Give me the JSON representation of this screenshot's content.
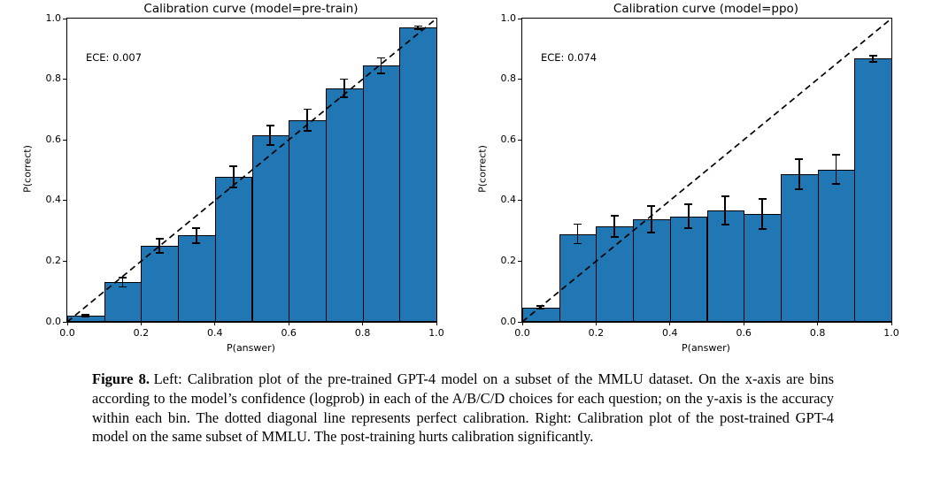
{
  "figure": {
    "caption": {
      "label": "Figure 8.",
      "text": "Left: Calibration plot of the pre-trained GPT-4 model on a subset of the MMLU dataset. On the x-axis are bins according to the model’s confidence (logprob) in each of the A/B/C/D choices for each question; on the y-axis is the accuracy within each bin. The dotted diagonal line represents perfect calibration. Right: Calibration plot of the post-trained GPT-4 model on the same subset of MMLU. The post-training hurts calibration significantly."
    }
  },
  "colors": {
    "bar_fill": "#2077b4",
    "bar_edge": "#000000",
    "diagonal_line": "#000000",
    "text": "#000000",
    "background": "#ffffff"
  },
  "chart_data": [
    {
      "type": "bar",
      "title": "Calibration curve (model=pre-train)",
      "annotation": "ECE: 0.007",
      "xlabel": "P(answer)",
      "ylabel": "P(correct)",
      "xlim": [
        0.0,
        1.0
      ],
      "ylim": [
        0.0,
        1.0
      ],
      "x_ticks": [
        "0.0",
        "0.2",
        "0.4",
        "0.6",
        "0.8",
        "1.0"
      ],
      "y_ticks": [
        "0.0",
        "0.2",
        "0.4",
        "0.6",
        "0.8",
        "1.0"
      ],
      "bin_edges": [
        0.0,
        0.1,
        0.2,
        0.3,
        0.4,
        0.5,
        0.6,
        0.7,
        0.8,
        0.9,
        1.0
      ],
      "bin_centers": [
        0.05,
        0.15,
        0.25,
        0.35,
        0.45,
        0.55,
        0.65,
        0.75,
        0.85,
        0.95
      ],
      "values": [
        0.02,
        0.13,
        0.25,
        0.285,
        0.478,
        0.615,
        0.665,
        0.77,
        0.845,
        0.97
      ],
      "errors": [
        0.004,
        0.015,
        0.023,
        0.025,
        0.035,
        0.033,
        0.036,
        0.03,
        0.025,
        0.005
      ],
      "diagonal_line": {
        "style": "dashed",
        "from": [
          0.0,
          0.0
        ],
        "to": [
          1.0,
          1.0
        ],
        "meaning": "perfect calibration"
      },
      "grid": false,
      "legend": false
    },
    {
      "type": "bar",
      "title": "Calibration curve (model=ppo)",
      "annotation": "ECE: 0.074",
      "xlabel": "P(answer)",
      "ylabel": "P(correct)",
      "xlim": [
        0.0,
        1.0
      ],
      "ylim": [
        0.0,
        1.0
      ],
      "x_ticks": [
        "0.0",
        "0.2",
        "0.4",
        "0.6",
        "0.8",
        "1.0"
      ],
      "y_ticks": [
        "0.0",
        "0.2",
        "0.4",
        "0.6",
        "0.8",
        "1.0"
      ],
      "bin_edges": [
        0.0,
        0.1,
        0.2,
        0.3,
        0.4,
        0.5,
        0.6,
        0.7,
        0.8,
        0.9,
        1.0
      ],
      "bin_centers": [
        0.05,
        0.15,
        0.25,
        0.35,
        0.45,
        0.55,
        0.65,
        0.75,
        0.85,
        0.95
      ],
      "values": [
        0.048,
        0.29,
        0.315,
        0.338,
        0.348,
        0.368,
        0.355,
        0.487,
        0.502,
        0.868
      ],
      "errors": [
        0.004,
        0.032,
        0.036,
        0.044,
        0.04,
        0.047,
        0.05,
        0.05,
        0.048,
        0.01
      ],
      "diagonal_line": {
        "style": "dashed",
        "from": [
          0.0,
          0.0
        ],
        "to": [
          1.0,
          1.0
        ],
        "meaning": "perfect calibration"
      },
      "grid": false,
      "legend": false
    }
  ]
}
